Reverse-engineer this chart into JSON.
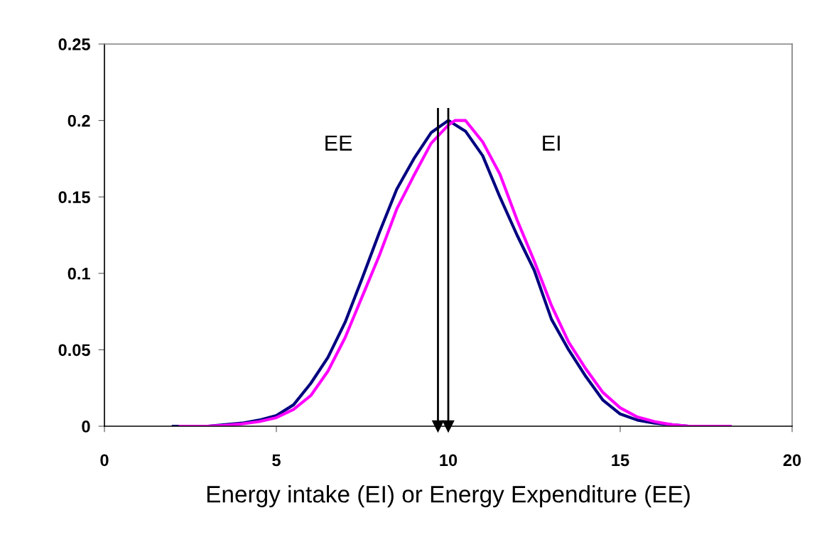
{
  "chart_data": {
    "type": "line",
    "xlabel": "Energy intake (EI) or Energy Expenditure (EE)",
    "xlim": [
      0,
      20
    ],
    "xticks": [
      0,
      5,
      10,
      15,
      20
    ],
    "ylim": [
      0,
      0.25
    ],
    "yticks": [
      0,
      0.05,
      0.1,
      0.15,
      0.2,
      0.25
    ],
    "grid": false,
    "legend": false,
    "marker": "none",
    "line_style": "solid",
    "series": [
      {
        "name": "EE",
        "color": "#000080",
        "x": [
          2,
          3,
          3.5,
          4,
          4.5,
          5,
          5.5,
          6,
          6.5,
          7,
          7.5,
          8,
          8.5,
          9,
          9.5,
          10,
          10.5,
          11,
          11.5,
          12,
          12.5,
          13,
          13.5,
          14,
          14.5,
          15,
          15.5,
          16,
          16.5,
          17,
          17.5
        ],
        "values": [
          0,
          0,
          0.001,
          0.002,
          0.004,
          0.007,
          0.014,
          0.028,
          0.045,
          0.068,
          0.097,
          0.127,
          0.155,
          0.175,
          0.192,
          0.2,
          0.193,
          0.177,
          0.15,
          0.125,
          0.102,
          0.07,
          0.05,
          0.0325,
          0.017,
          0.008,
          0.004,
          0.002,
          0.001,
          0,
          0
        ]
      },
      {
        "name": "EI",
        "color": "#ff00ff",
        "x": [
          2.2,
          3,
          3.5,
          4,
          4.5,
          5,
          5.5,
          6,
          6.5,
          7,
          7.5,
          8,
          8.5,
          9,
          9.5,
          10,
          10.2,
          10.5,
          11,
          11.5,
          12,
          12.5,
          13,
          13.5,
          14,
          14.5,
          15,
          15.5,
          16,
          16.5,
          17,
          18.2
        ],
        "values": [
          0,
          0,
          0.0005,
          0.0015,
          0.003,
          0.0056,
          0.011,
          0.02,
          0.036,
          0.058,
          0.085,
          0.112,
          0.142,
          0.164,
          0.185,
          0.197,
          0.2,
          0.2,
          0.186,
          0.165,
          0.135,
          0.108,
          0.079,
          0.055,
          0.0375,
          0.022,
          0.012,
          0.006,
          0.003,
          0.001,
          0,
          0
        ]
      }
    ],
    "ref_lines": [
      {
        "axis": "x",
        "value": 9.7,
        "label": null,
        "color": "#000000"
      },
      {
        "axis": "x",
        "value": 10.0,
        "label": null,
        "color": "#000000"
      }
    ]
  }
}
